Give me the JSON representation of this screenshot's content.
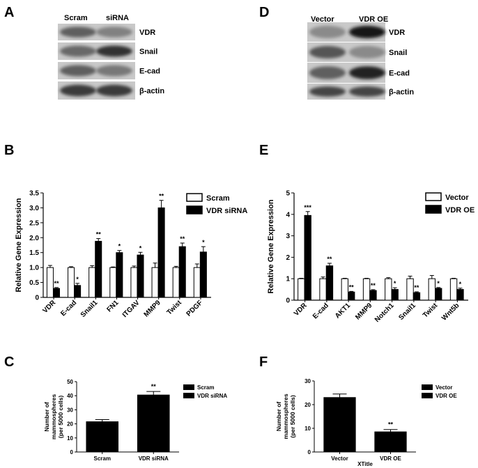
{
  "panels": {
    "A": {
      "letter": "A",
      "lanes": [
        "Scram",
        "siRNA"
      ],
      "bands": [
        "VDR",
        "Snail",
        "E-cad",
        "β-actin"
      ],
      "intensity": [
        [
          0.55,
          0.35
        ],
        [
          0.5,
          0.8
        ],
        [
          0.55,
          0.4
        ],
        [
          0.75,
          0.75
        ]
      ]
    },
    "D": {
      "letter": "D",
      "lanes": [
        "Vector",
        "VDR OE"
      ],
      "bands": [
        "VDR",
        "Snail",
        "E-cad",
        "β-actin"
      ],
      "intensity": [
        [
          0.3,
          0.95
        ],
        [
          0.6,
          0.3
        ],
        [
          0.55,
          0.9
        ],
        [
          0.7,
          0.7
        ]
      ]
    }
  },
  "chart_data": [
    {
      "panel": "B",
      "type": "bar",
      "ylabel": "Relative Gene Expression",
      "ylim": [
        0,
        3.5
      ],
      "yticks": [
        "0",
        "0.5",
        "1.0",
        "1.5",
        "2.0",
        "2.5",
        "3.0",
        "3.5"
      ],
      "categories": [
        "VDR",
        "E-cad",
        "Snail1",
        "FN1",
        "ITGAV",
        "MMP9",
        "Twist",
        "PDGF"
      ],
      "series": [
        {
          "name": "Scram",
          "values": [
            1.0,
            1.0,
            1.0,
            1.0,
            1.0,
            1.0,
            1.0,
            1.0
          ],
          "errors": [
            0.07,
            0.03,
            0.06,
            0.02,
            0.05,
            0.15,
            0.04,
            0.12
          ],
          "fill": "#ffffff"
        },
        {
          "name": "VDR siRNA",
          "values": [
            0.3,
            0.4,
            1.88,
            1.5,
            1.42,
            3.0,
            1.7,
            1.52
          ],
          "errors": [
            0.03,
            0.07,
            0.09,
            0.07,
            0.09,
            0.25,
            0.12,
            0.18
          ],
          "fill": "#000000"
        }
      ],
      "significance": [
        "**",
        "*",
        "**",
        "*",
        "*",
        "**",
        "**",
        "*"
      ],
      "legend_position": "top-right",
      "grid": false
    },
    {
      "panel": "E",
      "type": "bar",
      "ylabel": "Relative Gene Expression",
      "ylim": [
        0,
        5
      ],
      "yticks": [
        "0",
        "1",
        "2",
        "3",
        "4",
        "5"
      ],
      "categories": [
        "VDR",
        "E-cad",
        "AKT1",
        "MMP9",
        "Notch1",
        "Snail1",
        "Twist",
        "Wnt5b"
      ],
      "series": [
        {
          "name": "Vector",
          "values": [
            1.0,
            1.0,
            1.0,
            1.0,
            1.0,
            1.0,
            1.0,
            1.0
          ],
          "errors": [
            0.02,
            0.08,
            0.02,
            0.02,
            0.05,
            0.12,
            0.15,
            0.02
          ],
          "fill": "#ffffff"
        },
        {
          "name": "VDR OE",
          "values": [
            3.95,
            1.6,
            0.38,
            0.45,
            0.5,
            0.35,
            0.55,
            0.5
          ],
          "errors": [
            0.18,
            0.12,
            0.03,
            0.04,
            0.08,
            0.04,
            0.04,
            0.06
          ],
          "fill": "#000000"
        }
      ],
      "significance": [
        "***",
        "**",
        "**",
        "**",
        "*",
        "**",
        "*",
        "*"
      ],
      "legend_position": "top-right",
      "grid": false
    },
    {
      "panel": "C",
      "type": "bar",
      "ylabel": "Number  of\nmammospheres\n(per 5000 cells)",
      "ylim": [
        0,
        50
      ],
      "yticks": [
        "0",
        "10",
        "20",
        "30",
        "40",
        "50"
      ],
      "categories": [
        "Scram",
        "VDR siRNA"
      ],
      "values": [
        21.5,
        40.5
      ],
      "errors": [
        1.5,
        2.5
      ],
      "significance": [
        "",
        "**"
      ],
      "legend": [
        "Scram",
        "VDR siRNA"
      ],
      "legend_position": "top-right",
      "grid": false
    },
    {
      "panel": "F",
      "type": "bar",
      "ylabel": "Number  of\nmammospheres\n(per 5000 cells)",
      "xlabel": "XTitle",
      "ylim": [
        0,
        30
      ],
      "yticks": [
        "0",
        "10",
        "20",
        "30"
      ],
      "categories": [
        "Vector",
        "VDR OE"
      ],
      "values": [
        23,
        8.5
      ],
      "errors": [
        1.5,
        1.0
      ],
      "significance": [
        "",
        "**"
      ],
      "legend": [
        "Vector",
        "VDR OE"
      ],
      "legend_position": "top-right",
      "grid": false
    }
  ]
}
